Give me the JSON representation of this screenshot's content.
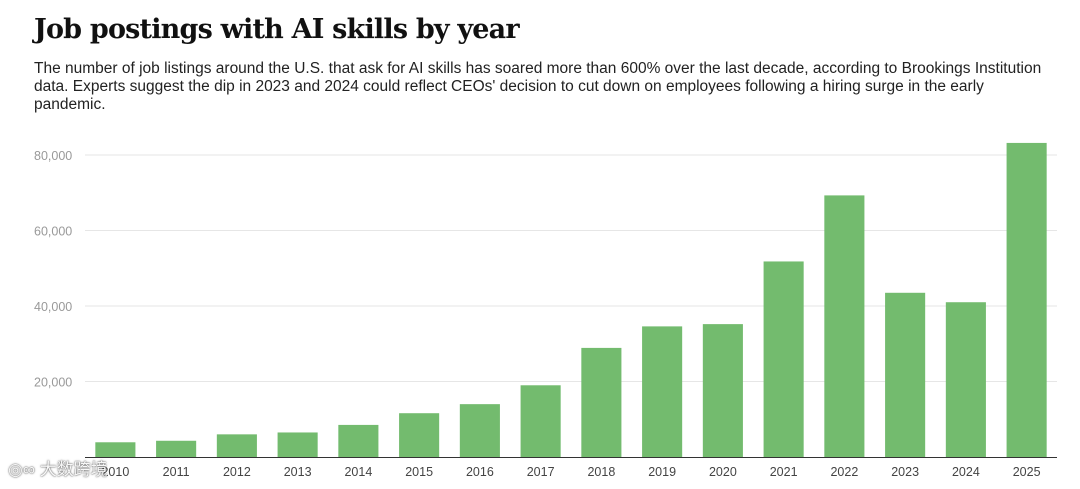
{
  "title": "Job postings with AI skills by year",
  "subtitle": "The number of job listings around the U.S. that ask for AI skills has soared more than 600% over the last decade, according to Brookings Institution data. Experts suggest the dip in 2023 and 2024 could reflect CEOs' decision to cut down on employees following a hiring surge in the early pandemic.",
  "watermark": "大数跨境",
  "colors": {
    "bar": "#73bb6e",
    "grid": "#e6e6e6",
    "tick": "#999999",
    "axis": "#333333",
    "xtick": "#444444"
  },
  "chart_data": {
    "type": "bar",
    "title": "Job postings with AI skills by year",
    "xlabel": "",
    "ylabel": "",
    "categories": [
      "2010",
      "2011",
      "2012",
      "2013",
      "2014",
      "2015",
      "2016",
      "2017",
      "2018",
      "2019",
      "2020",
      "2021",
      "2022",
      "2023",
      "2024",
      "2025"
    ],
    "values": [
      3900,
      4300,
      6000,
      6500,
      8500,
      11600,
      14000,
      19000,
      28900,
      34600,
      35200,
      51800,
      69300,
      43500,
      41000,
      83200
    ],
    "ylim": [
      0,
      80000
    ],
    "yticks": [
      20000,
      40000,
      60000,
      80000
    ],
    "ytick_labels": [
      "20,000",
      "40,000",
      "60,000",
      "80,000"
    ],
    "grid": true
  }
}
